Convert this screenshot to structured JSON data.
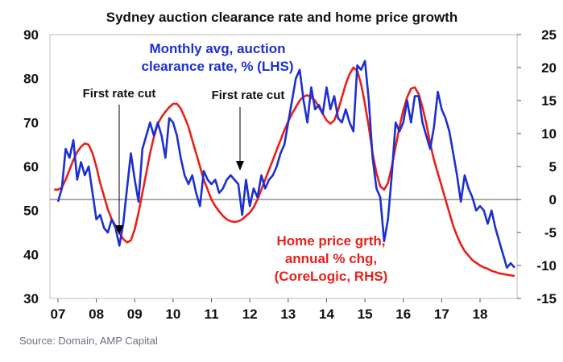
{
  "chart_data": {
    "type": "line",
    "title": "Sydney auction clearance rate and home price growth",
    "x_ticks": [
      "07",
      "08",
      "09",
      "10",
      "11",
      "12",
      "13",
      "14",
      "15",
      "16",
      "17",
      "18"
    ],
    "y_left": {
      "min": 30,
      "max": 90,
      "ticks": [
        30,
        40,
        50,
        60,
        70,
        80,
        90
      ],
      "label": "Monthly avg, auction clearance rate, % (LHS)"
    },
    "y_right": {
      "min": -15,
      "max": 25,
      "ticks": [
        -15,
        -10,
        -5,
        0,
        5,
        10,
        15,
        20,
        25
      ],
      "label": "Home price grth, annual % chg, (CoreLogic, RHS)"
    },
    "blue_label_lines": [
      "Monthly avg, auction",
      "clearance rate, % (LHS)"
    ],
    "red_label_lines": [
      "Home price grth,",
      "annual % chg,",
      "(CoreLogic, RHS)"
    ],
    "series": [
      {
        "name": "Auction clearance rate (LHS)",
        "color": "#1c2fd0",
        "axis": "left",
        "x": [
          2007.0,
          2007.1,
          2007.2,
          2007.3,
          2007.4,
          2007.5,
          2007.6,
          2007.7,
          2007.8,
          2007.9,
          2008.0,
          2008.1,
          2008.2,
          2008.3,
          2008.4,
          2008.5,
          2008.6,
          2008.7,
          2008.8,
          2008.9,
          2009.0,
          2009.1,
          2009.2,
          2009.3,
          2009.4,
          2009.5,
          2009.6,
          2009.7,
          2009.8,
          2009.9,
          2010.0,
          2010.1,
          2010.2,
          2010.3,
          2010.4,
          2010.5,
          2010.6,
          2010.7,
          2010.8,
          2010.9,
          2011.0,
          2011.1,
          2011.2,
          2011.3,
          2011.4,
          2011.5,
          2011.6,
          2011.7,
          2011.8,
          2011.9,
          2012.0,
          2012.1,
          2012.2,
          2012.3,
          2012.4,
          2012.5,
          2012.6,
          2012.7,
          2012.8,
          2012.9,
          2013.0,
          2013.1,
          2013.2,
          2013.3,
          2013.4,
          2013.5,
          2013.6,
          2013.7,
          2013.8,
          2013.9,
          2014.0,
          2014.1,
          2014.2,
          2014.3,
          2014.4,
          2014.5,
          2014.6,
          2014.7,
          2014.8,
          2014.9,
          2015.0,
          2015.1,
          2015.2,
          2015.3,
          2015.4,
          2015.5,
          2015.6,
          2015.7,
          2015.8,
          2015.9,
          2016.0,
          2016.1,
          2016.2,
          2016.3,
          2016.4,
          2016.5,
          2016.6,
          2016.7,
          2016.8,
          2016.9,
          2017.0,
          2017.1,
          2017.2,
          2017.3,
          2017.4,
          2017.5,
          2017.6,
          2017.7,
          2017.8,
          2017.9,
          2018.0,
          2018.1,
          2018.2,
          2018.3,
          2018.4,
          2018.5,
          2018.6,
          2018.7,
          2018.8,
          2018.9
        ],
        "values": [
          52,
          55,
          64,
          62,
          66,
          57,
          61,
          58,
          60,
          54,
          48,
          49,
          46,
          45,
          48,
          46,
          42,
          47,
          55,
          63,
          57,
          52,
          64,
          67,
          70,
          67,
          70,
          67,
          62,
          71,
          70,
          67,
          62,
          58,
          56,
          58,
          54,
          51,
          59,
          57,
          56,
          57,
          54,
          55,
          57,
          58,
          57,
          56,
          49,
          57,
          51,
          55,
          53,
          58,
          55,
          57,
          58,
          60,
          63,
          65,
          70,
          75,
          80,
          82,
          75,
          70,
          78,
          73,
          74,
          72,
          78,
          73,
          76,
          71,
          70,
          73,
          70,
          68,
          83,
          82,
          84,
          75,
          62,
          55,
          53,
          43,
          48,
          58,
          70,
          68,
          70,
          75,
          70,
          76,
          76,
          70,
          67,
          64,
          69,
          77,
          73,
          71,
          68,
          63,
          58,
          52,
          58,
          55,
          53,
          50,
          51,
          50,
          47,
          50,
          46,
          43,
          40,
          37,
          38,
          37
        ]
      },
      {
        "name": "Home price growth, annual % chg (RHS)",
        "color": "#e8201a",
        "axis": "right",
        "x": [
          2006.9,
          2007.0,
          2007.1,
          2007.2,
          2007.3,
          2007.4,
          2007.5,
          2007.6,
          2007.7,
          2007.8,
          2007.9,
          2008.0,
          2008.1,
          2008.2,
          2008.3,
          2008.4,
          2008.5,
          2008.6,
          2008.7,
          2008.8,
          2008.9,
          2009.0,
          2009.1,
          2009.2,
          2009.3,
          2009.4,
          2009.5,
          2009.6,
          2009.7,
          2009.8,
          2009.9,
          2010.0,
          2010.1,
          2010.2,
          2010.3,
          2010.4,
          2010.5,
          2010.6,
          2010.7,
          2010.8,
          2010.9,
          2011.0,
          2011.1,
          2011.2,
          2011.3,
          2011.4,
          2011.5,
          2011.6,
          2011.7,
          2011.8,
          2011.9,
          2012.0,
          2012.1,
          2012.2,
          2012.3,
          2012.4,
          2012.5,
          2012.6,
          2012.7,
          2012.8,
          2012.9,
          2013.0,
          2013.1,
          2013.2,
          2013.3,
          2013.4,
          2013.5,
          2013.6,
          2013.7,
          2013.8,
          2013.9,
          2014.0,
          2014.1,
          2014.2,
          2014.3,
          2014.4,
          2014.5,
          2014.6,
          2014.7,
          2014.8,
          2014.9,
          2015.0,
          2015.1,
          2015.2,
          2015.3,
          2015.4,
          2015.5,
          2015.6,
          2015.7,
          2015.8,
          2015.9,
          2016.0,
          2016.1,
          2016.2,
          2016.3,
          2016.4,
          2016.5,
          2016.6,
          2016.7,
          2016.8,
          2016.9,
          2017.0,
          2017.1,
          2017.2,
          2017.3,
          2017.4,
          2017.5,
          2017.6,
          2017.7,
          2017.8,
          2017.9,
          2018.0,
          2018.1,
          2018.2,
          2018.3,
          2018.4,
          2018.5,
          2018.6,
          2018.7,
          2018.8,
          2018.9
        ],
        "values": [
          1.5,
          1.5,
          1.8,
          3.0,
          4.5,
          6.0,
          7.2,
          8.0,
          8.5,
          8.3,
          7.0,
          5.0,
          2.5,
          0.5,
          -1.5,
          -3.0,
          -4.0,
          -5.0,
          -6.0,
          -6.5,
          -6.2,
          -4.5,
          -2.0,
          1.0,
          4.0,
          7.0,
          9.5,
          11.5,
          12.5,
          13.3,
          14.0,
          14.5,
          14.5,
          13.8,
          12.5,
          11.0,
          9.0,
          7.0,
          5.0,
          3.0,
          1.5,
          0.0,
          -1.0,
          -1.8,
          -2.5,
          -3.0,
          -3.3,
          -3.4,
          -3.3,
          -3.0,
          -2.5,
          -2.0,
          -1.2,
          0.0,
          1.5,
          3.0,
          4.5,
          6.0,
          7.5,
          9.0,
          10.5,
          11.8,
          13.0,
          14.0,
          15.0,
          15.6,
          15.8,
          15.5,
          15.0,
          14.0,
          13.0,
          12.0,
          11.5,
          12.0,
          13.5,
          15.5,
          17.5,
          19.0,
          20.0,
          19.5,
          17.5,
          14.5,
          11.0,
          7.0,
          4.0,
          2.0,
          1.5,
          2.5,
          5.0,
          8.0,
          11.0,
          13.5,
          15.5,
          16.8,
          17.0,
          16.0,
          14.0,
          11.5,
          8.5,
          6.0,
          4.0,
          2.0,
          0.0,
          -2.0,
          -4.0,
          -5.5,
          -6.8,
          -7.8,
          -8.5,
          -9.2,
          -9.6,
          -10.0,
          -10.3,
          -10.5,
          -10.8,
          -11.0,
          -11.2,
          -11.3,
          -11.4,
          -11.5,
          -11.6
        ]
      }
    ],
    "annotations": [
      {
        "text": "First rate cut",
        "at_x": 2008.7
      },
      {
        "text": "First rate cut",
        "at_x": 2011.85
      }
    ]
  },
  "source_text": "Source: Domain, AMP Capital"
}
